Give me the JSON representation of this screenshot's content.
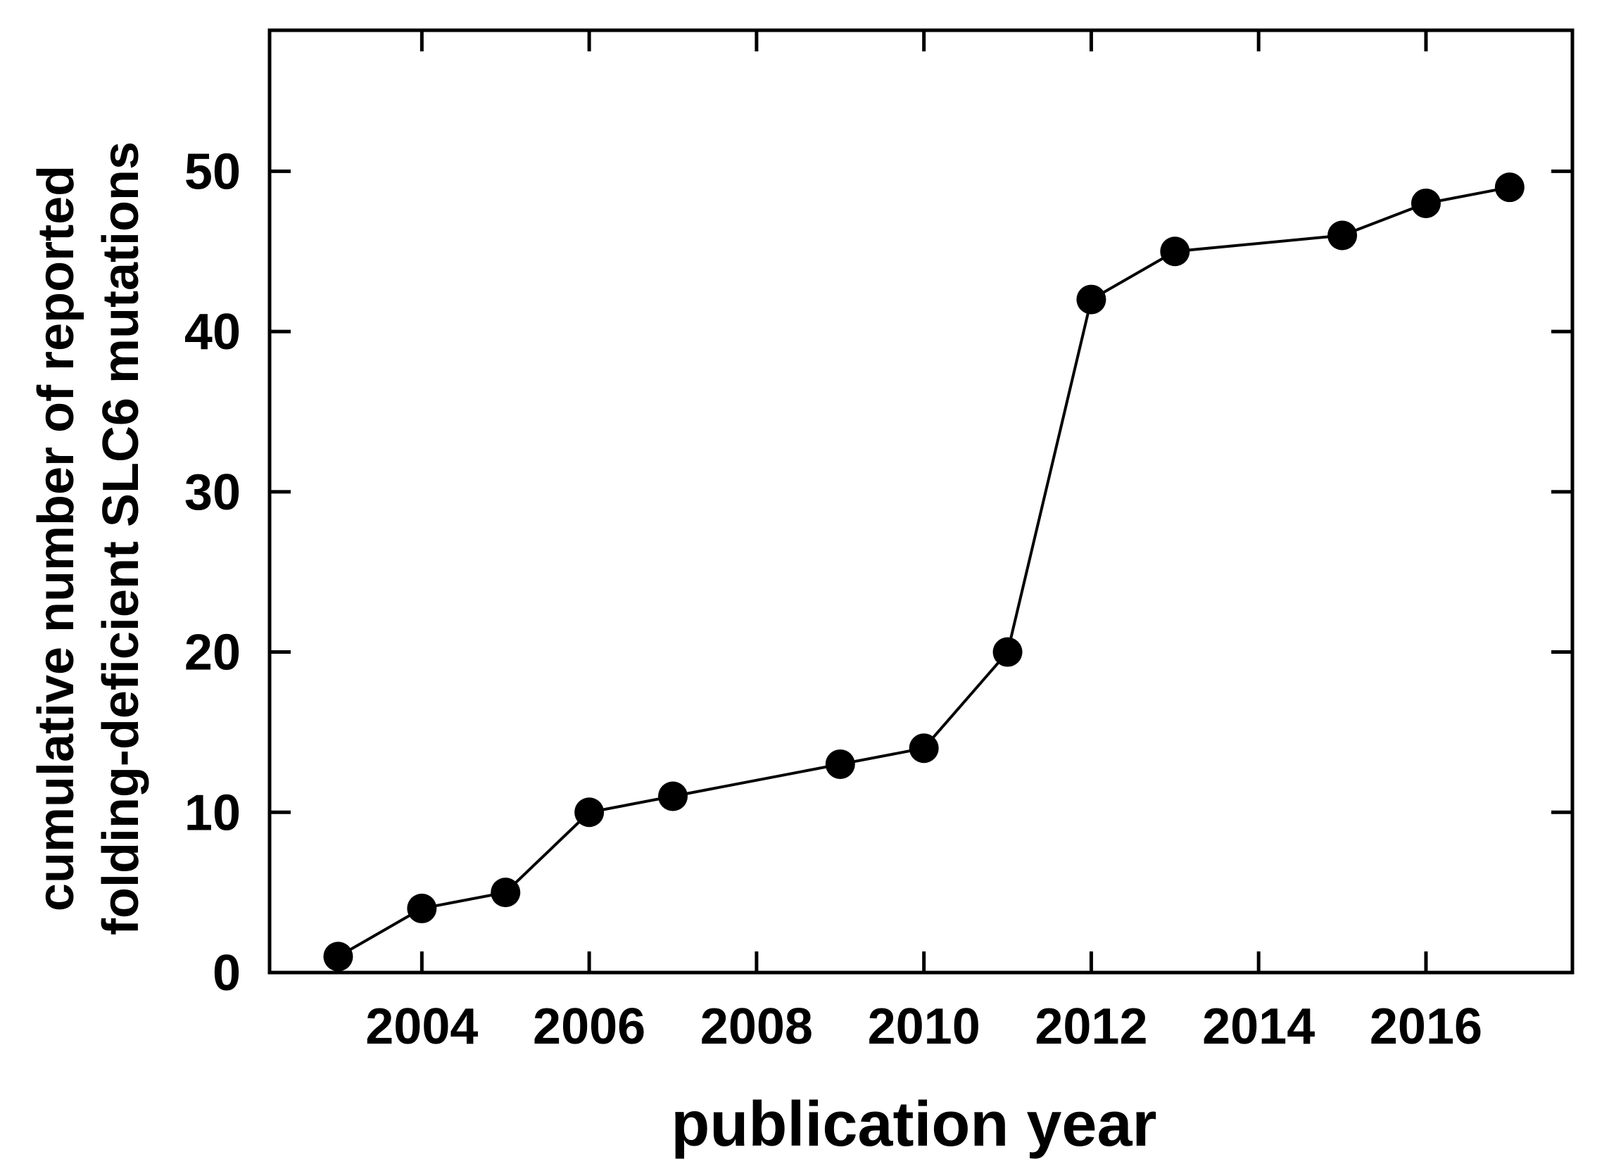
{
  "page": {
    "background": "#ffffff"
  },
  "chart_data": {
    "type": "line",
    "title": "",
    "xlabel": "publication year",
    "ylabel_line1": "cumulative number of reported",
    "ylabel_line2": "folding-deficient SLC6 mutations",
    "series": [
      {
        "name": "cumulative reported folding-deficient SLC6 mutations",
        "x": [
          2003,
          2004,
          2005,
          2006,
          2007,
          2009,
          2010,
          2011,
          2012,
          2013,
          2015,
          2016,
          2017
        ],
        "y": [
          1,
          4,
          5,
          10,
          11,
          13,
          14,
          20,
          42,
          45,
          46,
          48,
          49
        ]
      }
    ],
    "x_ticks": [
      "2004",
      "2006",
      "2008",
      "2010",
      "2012",
      "2014",
      "2016"
    ],
    "x_tick_values": [
      2004,
      2006,
      2008,
      2010,
      2012,
      2014,
      2016
    ],
    "y_ticks": [
      "0",
      "10",
      "20",
      "30",
      "40",
      "50"
    ],
    "y_tick_values": [
      0,
      10,
      20,
      30,
      40,
      50
    ],
    "xlim": [
      2002.18,
      2017.75
    ],
    "ylim": [
      0,
      58.8
    ],
    "grid": false,
    "legend_position": "none",
    "marker": "circle",
    "line_color": "#000000",
    "marker_color": "#000000",
    "axis_color": "#000000",
    "text_color": "#000000",
    "background_color": "#ffffff"
  }
}
